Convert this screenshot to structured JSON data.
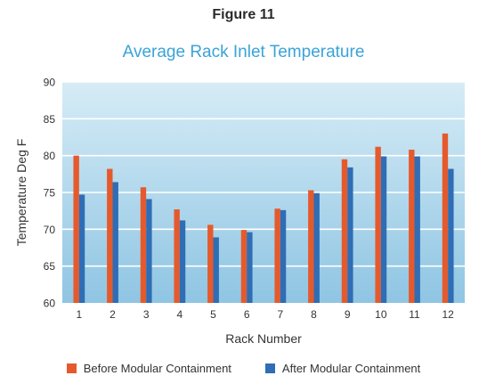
{
  "figure_label": "Figure 11",
  "colors": {
    "before": "#e55a2c",
    "after": "#2f6db5",
    "plot_top": "#d6ecf6",
    "plot_bottom": "#8fc5e3",
    "gridline": "#ffffff",
    "title": "#3aa3d8"
  },
  "chart_data": {
    "type": "bar",
    "title": "Average Rack Inlet Temperature",
    "xlabel": "Rack Number",
    "ylabel": "Temperature Deg F",
    "ylim": [
      60,
      90
    ],
    "yticks": [
      "60",
      "65",
      "70",
      "75",
      "80",
      "85",
      "90"
    ],
    "grid": true,
    "legend_position": "bottom",
    "categories": [
      "1",
      "2",
      "3",
      "4",
      "5",
      "6",
      "7",
      "8",
      "9",
      "10",
      "11",
      "12"
    ],
    "series": [
      {
        "name": "Before Modular Containment",
        "values": [
          80.0,
          78.2,
          75.7,
          72.7,
          70.6,
          69.9,
          72.8,
          75.3,
          79.5,
          81.2,
          80.8,
          83.0
        ]
      },
      {
        "name": "After Modular Containment",
        "values": [
          74.7,
          76.4,
          74.1,
          71.2,
          68.9,
          69.6,
          72.6,
          74.9,
          78.4,
          79.9,
          79.9,
          78.2
        ]
      }
    ]
  }
}
